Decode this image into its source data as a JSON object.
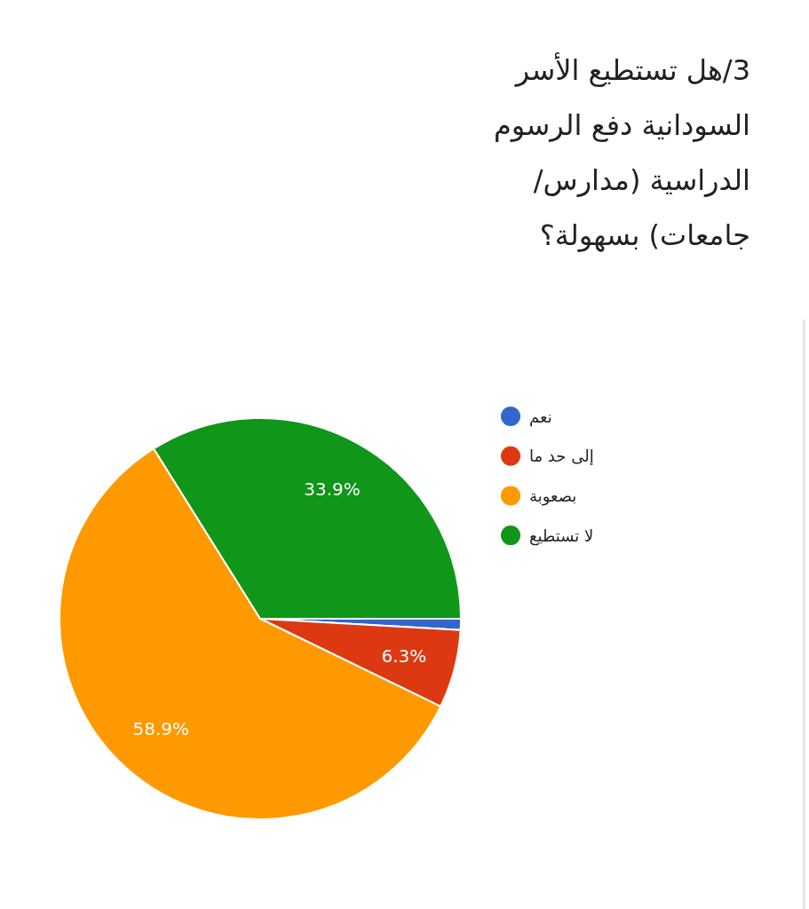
{
  "chart_data": {
    "type": "pie",
    "title": "3/هل تستطيع الأسر السودانية دفع الرسوم الدراسية (مدارس/ جامعات) بسهولة؟",
    "categories": [
      "نعم",
      "إلى حد ما",
      "بصعوبة",
      "لا تستطيع"
    ],
    "values": [
      0.9,
      6.3,
      58.9,
      33.9
    ],
    "colors": [
      "#3366cc",
      "#dc3912",
      "#ff9900",
      "#109618"
    ],
    "value_labels": [
      null,
      "6.3%",
      "58.9%",
      "33.9%"
    ],
    "legend": "right"
  }
}
